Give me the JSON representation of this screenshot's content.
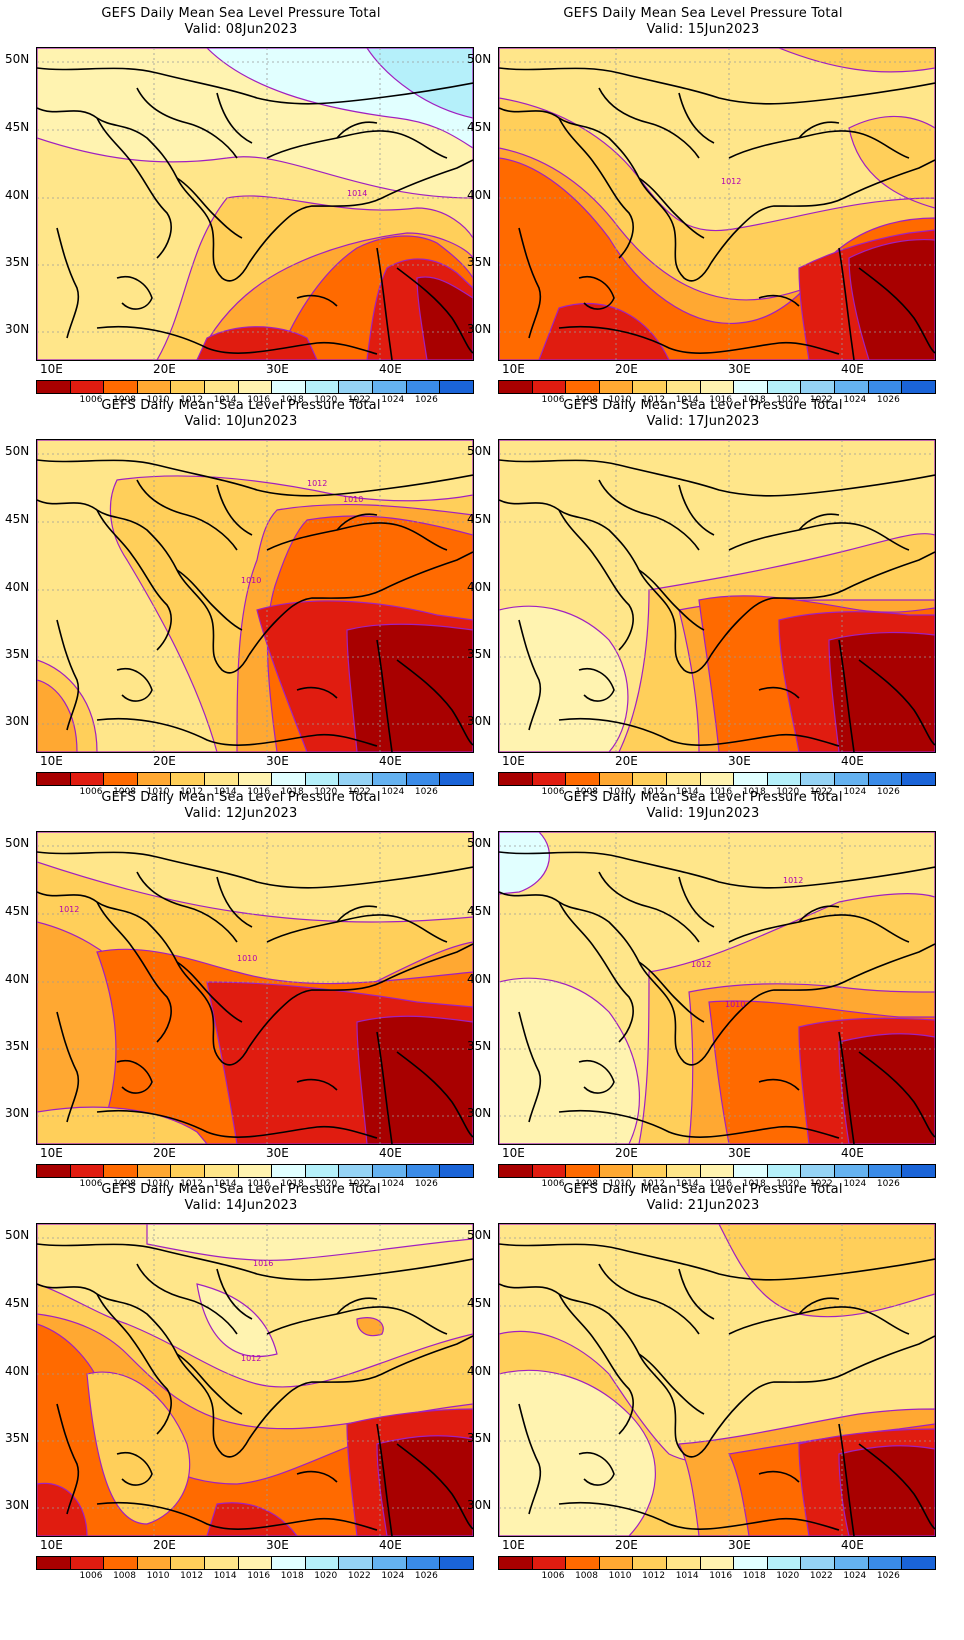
{
  "title": "GEFS Daily Mean Sea Level Pressure Total",
  "lat_labels": [
    "50N",
    "45N",
    "40N",
    "35N",
    "30N"
  ],
  "lon_labels": [
    "10E",
    "20E",
    "30E",
    "40E"
  ],
  "colorbar": {
    "colors": [
      "#a80000",
      "#e01c10",
      "#ff6a00",
      "#ffa832",
      "#ffcf5a",
      "#ffe68a",
      "#fff3b0",
      "#e1ffff",
      "#b5f0fa",
      "#95d3f5",
      "#65b2f0",
      "#3a8be8",
      "#1a64d8"
    ],
    "labels": [
      "1006",
      "1008",
      "1010",
      "1012",
      "1014",
      "1016",
      "1018",
      "1020",
      "1022",
      "1024",
      "1026"
    ]
  },
  "panels": [
    {
      "id": "p1",
      "valid": "Valid: 08Jun2023",
      "contour_labels": [
        "1014"
      ]
    },
    {
      "id": "p2",
      "valid": "Valid: 15Jun2023",
      "contour_labels": [
        "1012"
      ]
    },
    {
      "id": "p3",
      "valid": "Valid: 10Jun2023",
      "contour_labels": [
        "1012",
        "1010",
        "1010"
      ]
    },
    {
      "id": "p4",
      "valid": "Valid: 17Jun2023",
      "contour_labels": []
    },
    {
      "id": "p5",
      "valid": "Valid: 12Jun2023",
      "contour_labels": [
        "1012",
        "1010"
      ]
    },
    {
      "id": "p6",
      "valid": "Valid: 19Jun2023",
      "contour_labels": [
        "1012",
        "1012",
        "1010"
      ]
    },
    {
      "id": "p7",
      "valid": "Valid: 14Jun2023",
      "contour_labels": [
        "1016",
        "1012"
      ]
    },
    {
      "id": "p8",
      "valid": "Valid: 21Jun2023",
      "contour_labels": []
    }
  ]
}
